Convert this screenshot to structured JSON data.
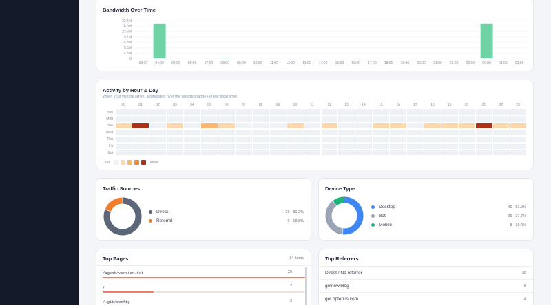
{
  "bandwidth": {
    "title": "Bandwidth Over Time",
    "chart_data": {
      "type": "bar",
      "title": "Bandwidth Over Time",
      "y_ticks": [
        "33.4M",
        "28.6M",
        "23.8M",
        "19.1M",
        "14.3M",
        "9.5M",
        "4.8M",
        "0"
      ],
      "categories": [
        "03:00",
        "04:00",
        "05:00",
        "06:00",
        "07:00",
        "08:00",
        "09:00",
        "10:00",
        "11:00",
        "12:00",
        "13:00",
        "14:00",
        "15:00",
        "16:00",
        "17:00",
        "18:00",
        "19:00",
        "20:00",
        "21:00",
        "22:00",
        "23:00",
        "00:00",
        "01:00",
        "02:00"
      ],
      "values": [
        0,
        30.5,
        0,
        0,
        0,
        0.2,
        0,
        0,
        0,
        0,
        0,
        0,
        0,
        0,
        0,
        0,
        0,
        0,
        0,
        0,
        0,
        30.5,
        0,
        0
      ],
      "ylim": [
        0,
        33.4
      ],
      "bar_color": "#6fd3a6",
      "grid": true
    }
  },
  "activity": {
    "title": "Activity by Hour & Day",
    "subtitle": "When your visitors arrive, aggregated over the selected range (server local time)",
    "hours": [
      "00",
      "01",
      "02",
      "03",
      "04",
      "05",
      "06",
      "07",
      "08",
      "09",
      "10",
      "11",
      "12",
      "13",
      "14",
      "15",
      "16",
      "17",
      "18",
      "19",
      "20",
      "21",
      "22",
      "23"
    ],
    "days": [
      "Sun",
      "Mon",
      "Tue",
      "Wed",
      "Thu",
      "Fri",
      "Sat"
    ],
    "tue_levels": [
      1,
      4,
      0,
      1,
      0,
      2,
      1,
      0,
      0,
      0,
      1,
      0,
      1,
      0,
      0,
      1,
      1,
      0,
      1,
      1,
      1,
      4,
      1,
      1
    ],
    "legend_less": "Less",
    "legend_more": "More",
    "colors": [
      "#eef1f5",
      "#fbd9b0",
      "#f7b874",
      "#f08a3c",
      "#a8321a"
    ]
  },
  "traffic_sources": {
    "title": "Traffic Sources",
    "items": [
      {
        "label": "Direct",
        "value": "39 · 81.3%",
        "fraction": 0.813,
        "color": "#5b6678"
      },
      {
        "label": "Referral",
        "value": "9 · 18.8%",
        "fraction": 0.188,
        "color": "#f07f2d"
      }
    ]
  },
  "device_type": {
    "title": "Device Type",
    "items": [
      {
        "label": "Desktop",
        "value": "40 · 51.9%",
        "fraction": 0.519,
        "color": "#3f86f0"
      },
      {
        "label": "Bot",
        "value": "29 · 37.7%",
        "fraction": 0.377,
        "color": "#9aa4b4"
      },
      {
        "label": "Mobile",
        "value": "8 · 10.4%",
        "fraction": 0.104,
        "color": "#1bb37a"
      }
    ]
  },
  "top_pages": {
    "title": "Top Pages",
    "count": "14 items",
    "items": [
      {
        "path": "/agent/version.txt",
        "value": "28",
        "fraction": 1.0
      },
      {
        "path": "/",
        "value": "7",
        "fraction": 0.25
      },
      {
        "path": "/.git/config",
        "value": "3",
        "fraction": 0.107
      }
    ]
  },
  "top_referrers": {
    "title": "Top Referrers",
    "items": [
      {
        "label": "Direct / No referrer",
        "value": "39"
      },
      {
        "label": "getnew.blog",
        "value": "5"
      },
      {
        "label": "get.opterius.com",
        "value": "4"
      }
    ]
  }
}
